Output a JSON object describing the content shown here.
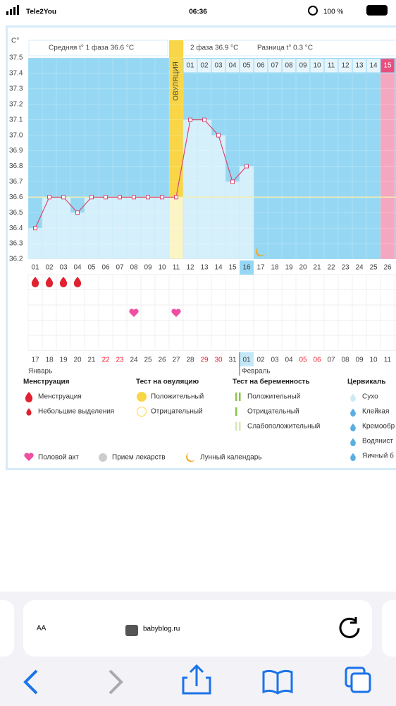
{
  "status_bar": {
    "carrier": "Tele2You",
    "time": "06:36",
    "battery": "100 %"
  },
  "chart_data": {
    "type": "line",
    "y_label": "C°",
    "phase1": "Средняя t° 1 фаза 36.6 °C",
    "phase2": "2 фаза 36.9 °C",
    "difference": "Разница t° 0.3 °C",
    "ovulation_label": "ОВУЛЯЦИЯ",
    "categories": [
      "01",
      "02",
      "03",
      "04",
      "05",
      "06",
      "07",
      "08",
      "09",
      "10",
      "11",
      "12",
      "13",
      "14",
      "15",
      "16",
      "17",
      "18",
      "19",
      "20",
      "21",
      "22",
      "23",
      "24",
      "25",
      "26"
    ],
    "values": [
      36.4,
      36.6,
      36.6,
      36.5,
      36.6,
      36.6,
      36.6,
      36.6,
      36.6,
      36.6,
      36.6,
      37.1,
      37.1,
      37.0,
      36.7,
      36.8,
      null,
      null,
      null,
      null,
      null,
      null,
      null,
      null,
      null,
      null
    ],
    "phase2_days": [
      "01",
      "02",
      "03",
      "04",
      "05",
      "06",
      "07",
      "08",
      "09",
      "10",
      "11",
      "12",
      "13",
      "14",
      "15"
    ],
    "dates": [
      "17",
      "18",
      "19",
      "20",
      "21",
      "22",
      "23",
      "24",
      "25",
      "26",
      "27",
      "28",
      "29",
      "30",
      "31",
      "01",
      "02",
      "03",
      "04",
      "05",
      "06",
      "07",
      "08",
      "09",
      "10",
      "11"
    ],
    "months": [
      "Январь",
      "Февраль"
    ],
    "color": "#d9486f",
    "bar_color": "#d6f0fb",
    "cover_line": 36.6,
    "cover_color": "#f3ecb0",
    "ylim": [
      36.2,
      37.5
    ],
    "yticks": [
      36.2,
      36.3,
      36.4,
      36.5,
      36.6,
      36.7,
      36.8,
      36.9,
      {
        "value": 37,
        "label": "37.0"
      },
      37.1,
      37.2,
      37.3,
      37.4,
      37.5
    ],
    "grid": true
  },
  "legend": {
    "groups": [
      {
        "title": "Менструация",
        "items": [
          "Менструация",
          "Небольшие выделения"
        ]
      },
      {
        "title": "Тест на овуляцию",
        "items": [
          "Положительный",
          "Отрицательный"
        ]
      },
      {
        "title": "Тест на беременность",
        "items": [
          "Положительный",
          "Отрицательный",
          "Слабоположительный"
        ]
      },
      {
        "title": "Цервикаль",
        "items": [
          "Сухо",
          "Клейкая",
          "Кремообр",
          "Водянист",
          "Яичный б"
        ]
      }
    ],
    "other": [
      "Половой акт",
      "Прием лекарств",
      "Лунный календарь"
    ]
  },
  "browser": {
    "text_size": "AA",
    "url": "babyblog.ru"
  }
}
